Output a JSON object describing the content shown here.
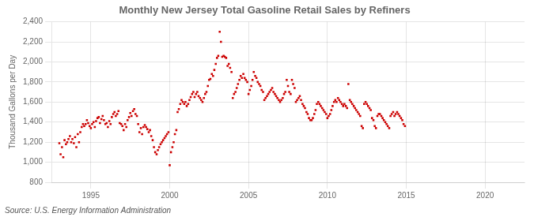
{
  "chart_data": {
    "type": "scatter",
    "title": "Monthly New Jersey Total Gasoline Retail Sales by Refiners",
    "ylabel": "Thousand Gallons per Day",
    "annotations": [
      "Source: U.S. Energy Information Administration"
    ],
    "color": "#cc0000",
    "marker": "square",
    "grid": true,
    "xlim": [
      1992.5,
      2022.5
    ],
    "xticks": [
      1995,
      2000,
      2005,
      2010,
      2015,
      2020
    ],
    "ylim": [
      800,
      2400
    ],
    "yticks": [
      800,
      {
        "value": 1000,
        "label": "1,000"
      },
      {
        "value": 1200,
        "label": "1,200"
      },
      {
        "value": 1400,
        "label": "1,400"
      },
      {
        "value": 1600,
        "label": "1,600"
      },
      {
        "value": 1800,
        "label": "1,800"
      },
      {
        "value": 2000,
        "label": "2,000"
      },
      {
        "value": 2200,
        "label": "2,200"
      },
      {
        "value": 2400,
        "label": "2,400"
      }
    ],
    "x": [
      1993.0,
      1993.08,
      1993.17,
      1993.25,
      1993.33,
      1993.42,
      1993.5,
      1993.58,
      1993.67,
      1993.75,
      1993.83,
      1993.92,
      1994.0,
      1994.08,
      1994.17,
      1994.25,
      1994.33,
      1994.42,
      1994.5,
      1994.58,
      1994.67,
      1994.75,
      1994.83,
      1994.92,
      1995.0,
      1995.08,
      1995.17,
      1995.25,
      1995.33,
      1995.42,
      1995.5,
      1995.58,
      1995.67,
      1995.75,
      1995.83,
      1995.92,
      1996.0,
      1996.08,
      1996.17,
      1996.25,
      1996.33,
      1996.42,
      1996.5,
      1996.58,
      1996.67,
      1996.75,
      1996.83,
      1996.92,
      1997.0,
      1997.08,
      1997.17,
      1997.25,
      1997.33,
      1997.42,
      1997.5,
      1997.58,
      1997.67,
      1997.75,
      1997.83,
      1997.92,
      1998.0,
      1998.08,
      1998.17,
      1998.25,
      1998.33,
      1998.42,
      1998.5,
      1998.58,
      1998.67,
      1998.75,
      1998.83,
      1998.92,
      1999.0,
      1999.08,
      1999.17,
      1999.25,
      1999.33,
      1999.42,
      1999.5,
      1999.58,
      1999.67,
      1999.75,
      1999.83,
      1999.92,
      2000.0,
      2000.08,
      2000.17,
      2000.25,
      2000.33,
      2000.42,
      2000.5,
      2000.58,
      2000.67,
      2000.75,
      2000.83,
      2000.92,
      2001.0,
      2001.08,
      2001.17,
      2001.25,
      2001.33,
      2001.42,
      2001.5,
      2001.58,
      2001.67,
      2001.75,
      2001.83,
      2001.92,
      2002.0,
      2002.08,
      2002.17,
      2002.25,
      2002.33,
      2002.42,
      2002.5,
      2002.58,
      2002.67,
      2002.75,
      2002.83,
      2002.92,
      2003.0,
      2003.08,
      2003.17,
      2003.25,
      2003.33,
      2003.42,
      2003.5,
      2003.58,
      2003.67,
      2003.75,
      2003.83,
      2003.92,
      2004.0,
      2004.08,
      2004.17,
      2004.25,
      2004.33,
      2004.42,
      2004.5,
      2004.58,
      2004.67,
      2004.75,
      2004.83,
      2004.92,
      2005.0,
      2005.08,
      2005.17,
      2005.25,
      2005.33,
      2005.42,
      2005.5,
      2005.58,
      2005.67,
      2005.75,
      2005.83,
      2005.92,
      2006.0,
      2006.08,
      2006.17,
      2006.25,
      2006.33,
      2006.42,
      2006.5,
      2006.58,
      2006.67,
      2006.75,
      2006.83,
      2006.92,
      2007.0,
      2007.08,
      2007.17,
      2007.25,
      2007.33,
      2007.42,
      2007.5,
      2007.58,
      2007.67,
      2007.75,
      2007.83,
      2007.92,
      2008.0,
      2008.08,
      2008.17,
      2008.25,
      2008.33,
      2008.42,
      2008.5,
      2008.58,
      2008.67,
      2008.75,
      2008.83,
      2008.92,
      2009.0,
      2009.08,
      2009.17,
      2009.25,
      2009.33,
      2009.42,
      2009.5,
      2009.58,
      2009.67,
      2009.75,
      2009.83,
      2009.92,
      2010.0,
      2010.08,
      2010.17,
      2010.25,
      2010.33,
      2010.42,
      2010.5,
      2010.58,
      2010.67,
      2010.75,
      2010.83,
      2010.92,
      2011.0,
      2011.08,
      2011.17,
      2011.25,
      2011.33,
      2011.42,
      2011.5,
      2011.58,
      2011.67,
      2011.75,
      2011.83,
      2011.92,
      2012.0,
      2012.08,
      2012.17,
      2012.25,
      2012.33,
      2012.42,
      2012.5,
      2012.58,
      2012.67,
      2012.75,
      2012.83,
      2012.92,
      2013.0,
      2013.08,
      2013.17,
      2013.25,
      2013.33,
      2013.42,
      2013.5,
      2013.58,
      2013.67,
      2013.75,
      2013.83,
      2013.92,
      2014.0,
      2014.08,
      2014.17,
      2014.25,
      2014.33,
      2014.42,
      2014.5,
      2014.58,
      2014.67,
      2014.75,
      2014.83,
      2014.92
    ],
    "values": [
      1190,
      1080,
      1150,
      1050,
      1220,
      1180,
      1200,
      1230,
      1260,
      1200,
      1230,
      1190,
      1250,
      1150,
      1280,
      1200,
      1300,
      1350,
      1380,
      1360,
      1380,
      1420,
      1390,
      1360,
      1340,
      1380,
      1400,
      1350,
      1410,
      1440,
      1450,
      1390,
      1430,
      1460,
      1420,
      1380,
      1390,
      1350,
      1410,
      1380,
      1450,
      1480,
      1500,
      1460,
      1480,
      1510,
      1390,
      1380,
      1360,
      1320,
      1380,
      1350,
      1420,
      1450,
      1490,
      1460,
      1510,
      1530,
      1480,
      1460,
      1380,
      1300,
      1340,
      1280,
      1350,
      1370,
      1350,
      1330,
      1300,
      1320,
      1260,
      1220,
      1150,
      1100,
      1080,
      1120,
      1150,
      1180,
      1200,
      1220,
      1240,
      1260,
      1280,
      1300,
      970,
      1100,
      1150,
      1200,
      1280,
      1320,
      1500,
      1530,
      1580,
      1620,
      1600,
      1580,
      1600,
      1560,
      1580,
      1620,
      1650,
      1680,
      1700,
      1650,
      1680,
      1700,
      1660,
      1640,
      1620,
      1600,
      1640,
      1680,
      1700,
      1760,
      1820,
      1830,
      1880,
      1860,
      1920,
      1980,
      2040,
      2060,
      2300,
      2200,
      2050,
      2060,
      2050,
      2040,
      1960,
      1980,
      1940,
      1900,
      1640,
      1680,
      1700,
      1740,
      1780,
      1820,
      1860,
      1840,
      1880,
      1840,
      1820,
      1800,
      1680,
      1720,
      1760,
      1820,
      1900,
      1860,
      1840,
      1800,
      1780,
      1760,
      1720,
      1700,
      1620,
      1640,
      1660,
      1680,
      1700,
      1720,
      1740,
      1700,
      1680,
      1660,
      1640,
      1620,
      1600,
      1620,
      1640,
      1680,
      1700,
      1820,
      1760,
      1700,
      1680,
      1820,
      1780,
      1740,
      1600,
      1620,
      1640,
      1660,
      1620,
      1580,
      1560,
      1540,
      1500,
      1480,
      1440,
      1420,
      1420,
      1440,
      1480,
      1520,
      1580,
      1600,
      1580,
      1560,
      1540,
      1520,
      1500,
      1480,
      1440,
      1460,
      1480,
      1520,
      1560,
      1600,
      1620,
      1600,
      1640,
      1620,
      1600,
      1580,
      1560,
      1580,
      1560,
      1540,
      1780,
      1620,
      1600,
      1580,
      1560,
      1540,
      1520,
      1500,
      1480,
      1460,
      1360,
      1340,
      1580,
      1600,
      1580,
      1560,
      1540,
      1520,
      1440,
      1420,
      1360,
      1340,
      1460,
      1480,
      1480,
      1460,
      1440,
      1420,
      1400,
      1380,
      1360,
      1340,
      1460,
      1480,
      1500,
      1460,
      1480,
      1500,
      1480,
      1460,
      1440,
      1420,
      1380,
      1360
    ]
  }
}
